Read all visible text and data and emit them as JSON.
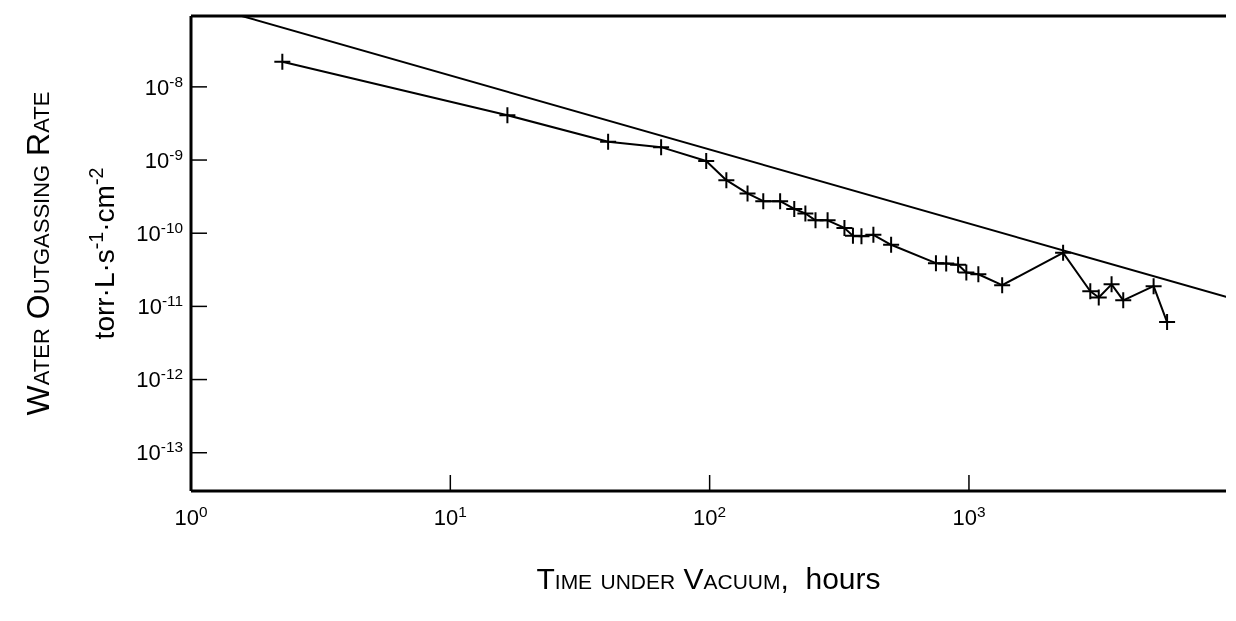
{
  "chart_data": {
    "type": "line",
    "xlabel": "Time under Vacuum,  hours",
    "ylabel": "Water Outgassing Rate\ntorr·L·s$^{-1}$·cm$^{-2}$",
    "log": "xy",
    "grid": false,
    "xlim": [
      1,
      9800
    ],
    "xticks": [
      {
        "value": 1,
        "label": "10$^{0}$"
      },
      {
        "value": 10,
        "label": "10$^{1}$"
      },
      {
        "value": 100,
        "label": "10$^{2}$"
      },
      {
        "value": 1000,
        "label": "10$^{3}$"
      }
    ],
    "ylim": [
      3e-14,
      9.3e-08
    ],
    "yticks": [
      {
        "value": 1e-08,
        "label": "10$^{-8}$"
      },
      {
        "value": 1e-09,
        "label": "10$^{-9}$"
      },
      {
        "value": 1e-10,
        "label": "10$^{-10}$"
      },
      {
        "value": 1e-11,
        "label": "10$^{-11}$"
      },
      {
        "value": 1e-12,
        "label": "10$^{-12}$"
      },
      {
        "value": 1e-13,
        "label": "10$^{-13}$"
      }
    ],
    "series": [
      {
        "color": "#000000",
        "marker": "cross",
        "line_style": "solid",
        "x": [
          2.25,
          16.6,
          40.6,
          65,
          97,
          116,
          140,
          161,
          187,
          212,
          234,
          256,
          285,
          331,
          357,
          385,
          428,
          501,
          746,
          817,
          908,
          977,
          1087,
          1343,
          2307,
          2937,
          3166,
          3548,
          3935,
          5153,
          5808
        ],
        "values": [
          2.2e-08,
          4.1e-09,
          1.78e-09,
          1.5e-09,
          9.7e-10,
          5.3e-10,
          3.5e-10,
          2.74e-10,
          2.74e-10,
          2.15e-10,
          1.86e-10,
          1.5e-10,
          1.5e-10,
          1.18e-10,
          9.2e-11,
          9.1e-11,
          9.5e-11,
          6.95e-11,
          3.9e-11,
          3.85e-11,
          3.7e-11,
          2.9e-11,
          2.75e-11,
          1.95e-11,
          5.4e-11,
          1.61e-11,
          1.32e-11,
          2e-11,
          1.21e-11,
          1.89e-11,
          6.1e-12
        ]
      },
      {
        "color": "#000000",
        "marker": "none",
        "line_style": "solid",
        "x": [
          1.57,
          9800
        ],
        "values": [
          9.3e-08,
          1.35e-11
        ]
      }
    ]
  }
}
